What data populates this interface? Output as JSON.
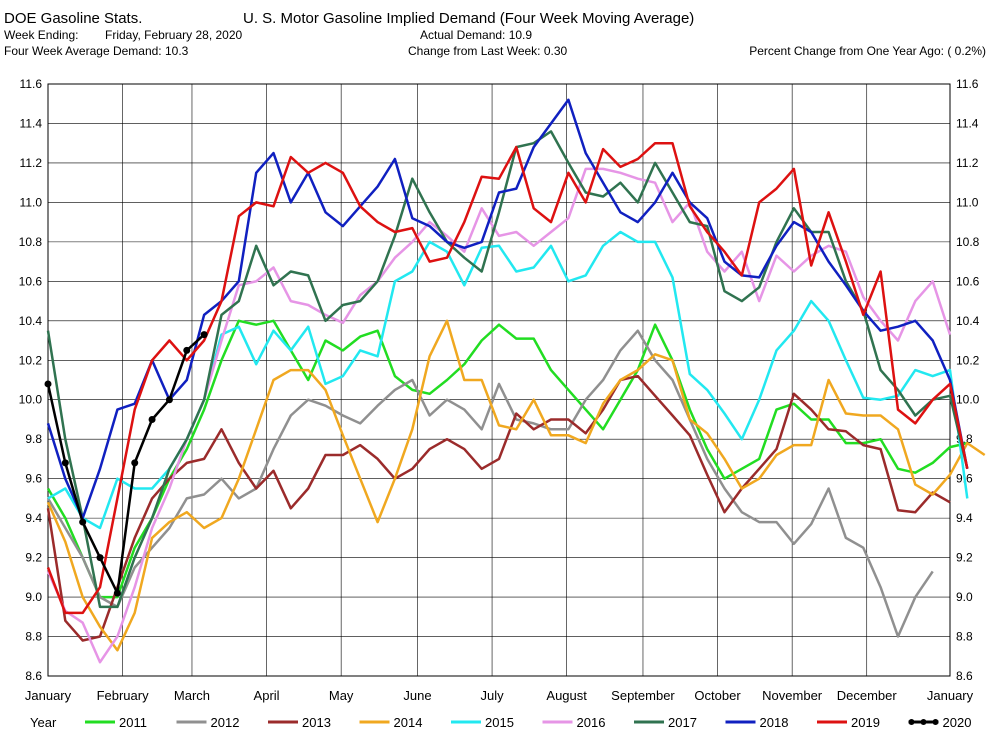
{
  "header": {
    "app_title": "DOE Gasoline Stats.",
    "chart_title": "U. S. Motor Gasoline Implied Demand (Four Week Moving Average)",
    "week_ending_label": "Week Ending:",
    "week_ending_value": "Friday, February 28, 2020",
    "four_week_avg": "Four Week Average Demand: 10.3",
    "actual_demand": "Actual Demand: 10.9",
    "change_last_week": "Change from Last Week: 0.30",
    "pct_change_year": "Percent Change from One Year Ago: ( 0.2%)"
  },
  "legend": {
    "title": "Year"
  },
  "chart_data": {
    "type": "line",
    "title": "U. S. Motor Gasoline Implied Demand (Four Week Moving Average)",
    "xlabel": "",
    "ylabel": "",
    "ylim": [
      8.6,
      11.6
    ],
    "yticks": [
      8.6,
      8.8,
      9.0,
      9.2,
      9.4,
      9.6,
      9.8,
      10.0,
      10.2,
      10.4,
      10.6,
      10.8,
      11.0,
      11.2,
      11.4,
      11.6
    ],
    "ytick_labels": [
      "8.6",
      "8.8",
      "9.0",
      "9.2",
      "9.4",
      "9.6",
      "9.8",
      "10.0",
      "10.2",
      "10.4",
      "10.6",
      "10.8",
      "11.0",
      "11.2",
      "11.4",
      "11.6"
    ],
    "x_unit": "week of year",
    "xlim": [
      1,
      53
    ],
    "months": [
      {
        "label": "January",
        "week": 1
      },
      {
        "label": "February",
        "week": 5.3
      },
      {
        "label": "March",
        "week": 9.3
      },
      {
        "label": "April",
        "week": 13.6
      },
      {
        "label": "May",
        "week": 17.9
      },
      {
        "label": "June",
        "week": 22.3
      },
      {
        "label": "July",
        "week": 26.6
      },
      {
        "label": "August",
        "week": 30.9
      },
      {
        "label": "September",
        "week": 35.3
      },
      {
        "label": "October",
        "week": 39.6
      },
      {
        "label": "November",
        "week": 43.9
      },
      {
        "label": "December",
        "week": 48.2
      },
      {
        "label": "January",
        "week": 53
      }
    ],
    "grid": true,
    "legend_position": "bottom",
    "series": [
      {
        "name": "2011",
        "color": "#22dd22",
        "marker": false,
        "values": [
          9.55,
          9.4,
          9.2,
          9.0,
          9.0,
          9.25,
          9.4,
          9.6,
          9.75,
          9.95,
          10.2,
          10.4,
          10.38,
          10.4,
          10.25,
          10.1,
          10.3,
          10.25,
          10.32,
          10.35,
          10.12,
          10.05,
          10.03,
          10.1,
          10.18,
          10.3,
          10.38,
          10.31,
          10.31,
          10.15,
          10.05,
          9.95,
          9.85,
          10.0,
          10.15,
          10.38,
          10.2,
          9.95,
          9.75,
          9.6,
          9.65,
          9.7,
          9.95,
          9.98,
          9.9,
          9.9,
          9.78,
          9.78,
          9.8,
          9.65,
          9.63,
          9.68,
          9.76,
          9.78
        ]
      },
      {
        "name": "2012",
        "color": "#909090",
        "marker": false,
        "values": [
          9.5,
          9.35,
          9.2,
          9.0,
          8.95,
          9.15,
          9.25,
          9.35,
          9.5,
          9.52,
          9.6,
          9.5,
          9.55,
          9.75,
          9.92,
          10.0,
          9.97,
          9.92,
          9.88,
          9.97,
          10.05,
          10.1,
          9.92,
          10.0,
          9.95,
          9.85,
          10.08,
          9.9,
          9.88,
          9.85,
          9.85,
          10.0,
          10.1,
          10.25,
          10.35,
          10.2,
          10.1,
          9.9,
          9.7,
          9.55,
          9.43,
          9.38,
          9.38,
          9.27,
          9.37,
          9.55,
          9.3,
          9.25,
          9.05,
          8.8,
          9.0,
          9.13
        ]
      },
      {
        "name": "2013",
        "color": "#9b2b2b",
        "marker": false,
        "values": [
          9.45,
          8.88,
          8.78,
          8.8,
          9.05,
          9.3,
          9.5,
          9.6,
          9.68,
          9.7,
          9.85,
          9.68,
          9.55,
          9.64,
          9.45,
          9.55,
          9.72,
          9.72,
          9.77,
          9.7,
          9.6,
          9.65,
          9.75,
          9.8,
          9.75,
          9.65,
          9.7,
          9.93,
          9.85,
          9.9,
          9.9,
          9.83,
          9.95,
          10.1,
          10.12,
          10.02,
          9.92,
          9.82,
          9.62,
          9.43,
          9.55,
          9.65,
          9.75,
          10.03,
          9.95,
          9.85,
          9.84,
          9.77,
          9.75,
          9.44,
          9.43,
          9.53,
          9.48
        ]
      },
      {
        "name": "2014",
        "color": "#f0a820",
        "marker": false,
        "values": [
          9.48,
          9.28,
          9.0,
          8.85,
          8.73,
          8.92,
          9.3,
          9.38,
          9.43,
          9.35,
          9.4,
          9.6,
          9.85,
          10.1,
          10.15,
          10.15,
          10.05,
          9.82,
          9.6,
          9.38,
          9.6,
          9.85,
          10.22,
          10.4,
          10.1,
          10.1,
          9.87,
          9.85,
          10.0,
          9.82,
          9.82,
          9.78,
          9.98,
          10.1,
          10.15,
          10.23,
          10.2,
          9.9,
          9.83,
          9.7,
          9.55,
          9.6,
          9.72,
          9.77,
          9.77,
          10.1,
          9.93,
          9.92,
          9.92,
          9.85,
          9.57,
          9.52,
          9.62,
          9.78,
          9.72
        ]
      },
      {
        "name": "2015",
        "color": "#22e8f0",
        "marker": false,
        "values": [
          9.5,
          9.55,
          9.4,
          9.35,
          9.6,
          9.55,
          9.55,
          9.65,
          9.8,
          10.0,
          10.33,
          10.37,
          10.18,
          10.35,
          10.25,
          10.37,
          10.08,
          10.12,
          10.25,
          10.22,
          10.6,
          10.65,
          10.8,
          10.75,
          10.58,
          10.77,
          10.78,
          10.65,
          10.67,
          10.78,
          10.6,
          10.63,
          10.78,
          10.85,
          10.8,
          10.8,
          10.62,
          10.13,
          10.05,
          9.93,
          9.8,
          10.0,
          10.25,
          10.35,
          10.5,
          10.4,
          10.2,
          10.01,
          10.0,
          10.02,
          10.15,
          10.12,
          10.15,
          9.5
        ]
      },
      {
        "name": "2016",
        "color": "#e695e6",
        "marker": false,
        "values": [
          9.13,
          8.93,
          8.87,
          8.67,
          8.8,
          9.05,
          9.35,
          9.55,
          9.8,
          10.0,
          10.3,
          10.58,
          10.6,
          10.67,
          10.5,
          10.48,
          10.43,
          10.39,
          10.53,
          10.6,
          10.72,
          10.8,
          10.9,
          10.83,
          10.75,
          10.97,
          10.83,
          10.85,
          10.78,
          10.85,
          10.92,
          11.17,
          11.17,
          11.15,
          11.12,
          11.1,
          10.9,
          11.0,
          10.75,
          10.65,
          10.75,
          10.5,
          10.73,
          10.65,
          10.73,
          10.78,
          10.75,
          10.52,
          10.4,
          10.3,
          10.5,
          10.6,
          10.33
        ]
      },
      {
        "name": "2017",
        "color": "#307350",
        "marker": false,
        "values": [
          10.35,
          9.8,
          9.4,
          8.95,
          8.95,
          9.2,
          9.4,
          9.65,
          9.8,
          10.0,
          10.43,
          10.5,
          10.78,
          10.58,
          10.65,
          10.63,
          10.4,
          10.48,
          10.5,
          10.6,
          10.83,
          11.12,
          10.95,
          10.8,
          10.72,
          10.65,
          10.95,
          11.28,
          11.3,
          11.36,
          11.2,
          11.05,
          11.03,
          11.1,
          11.0,
          11.2,
          11.05,
          10.9,
          10.88,
          10.55,
          10.5,
          10.57,
          10.8,
          10.97,
          10.85,
          10.85,
          10.6,
          10.45,
          10.15,
          10.05,
          9.92,
          10.0,
          10.02,
          9.65
        ]
      },
      {
        "name": "2018",
        "color": "#1020c0",
        "marker": false,
        "values": [
          9.88,
          9.6,
          9.4,
          9.65,
          9.95,
          9.98,
          10.2,
          10.0,
          10.1,
          10.43,
          10.5,
          10.6,
          11.15,
          11.25,
          11.0,
          11.15,
          10.95,
          10.88,
          10.98,
          11.08,
          11.22,
          10.92,
          10.88,
          10.8,
          10.77,
          10.8,
          11.05,
          11.07,
          11.28,
          11.4,
          11.52,
          11.25,
          11.1,
          10.95,
          10.9,
          11.0,
          11.15,
          11.0,
          10.92,
          10.7,
          10.63,
          10.62,
          10.78,
          10.9,
          10.85,
          10.7,
          10.58,
          10.45,
          10.35,
          10.37,
          10.4,
          10.3,
          10.1,
          9.65
        ]
      },
      {
        "name": "2019",
        "color": "#dd1111",
        "marker": false,
        "values": [
          9.15,
          8.92,
          8.92,
          9.05,
          9.5,
          9.95,
          10.2,
          10.3,
          10.2,
          10.3,
          10.5,
          10.93,
          11.0,
          10.98,
          11.23,
          11.15,
          11.2,
          11.15,
          10.98,
          10.9,
          10.85,
          10.87,
          10.7,
          10.72,
          10.9,
          11.13,
          11.12,
          11.28,
          10.97,
          10.9,
          11.15,
          11.0,
          11.27,
          11.18,
          11.22,
          11.3,
          11.3,
          10.98,
          10.85,
          10.75,
          10.63,
          11.0,
          11.07,
          11.17,
          10.68,
          10.95,
          10.7,
          10.43,
          10.65,
          9.95,
          9.88,
          10.0,
          10.08,
          9.65
        ]
      },
      {
        "name": "2020",
        "color": "#000000",
        "marker": true,
        "values": [
          10.08,
          9.68,
          9.38,
          9.2,
          9.02,
          9.68,
          9.9,
          10.0,
          10.25,
          10.33
        ]
      }
    ]
  }
}
